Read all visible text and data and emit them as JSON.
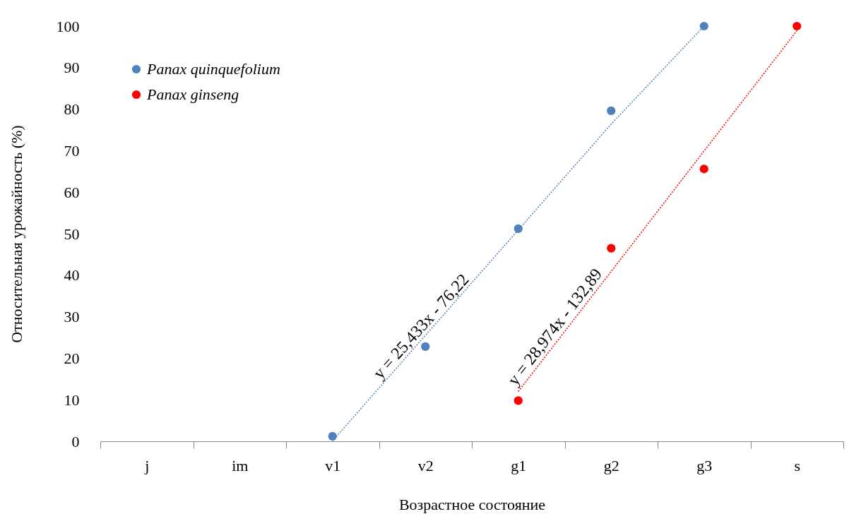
{
  "chart_data": {
    "type": "scatter",
    "xlabel": "Возрастное состояние",
    "ylabel": "Относительная урожайность (%)",
    "categories": [
      "j",
      "im",
      "v1",
      "v2",
      "g1",
      "g2",
      "g3",
      "s"
    ],
    "ylim": [
      0,
      100
    ],
    "yticks": [
      0,
      10,
      20,
      30,
      40,
      50,
      60,
      70,
      80,
      90,
      100
    ],
    "marker": "circle",
    "legend": "top left",
    "series": [
      {
        "name": "Panax quinquefolium",
        "color": "#4f81bd",
        "values": [
          null,
          null,
          1.2,
          22.8,
          51.2,
          79.6,
          100,
          null
        ]
      },
      {
        "name": "Panax ginseng",
        "color": "#ff0000",
        "values": [
          null,
          null,
          null,
          null,
          9.8,
          46.5,
          65.6,
          100
        ]
      },
      {
        "type": "line",
        "color": "#4f81bd",
        "line_style": "dotted",
        "marker": "none",
        "values": [
          null,
          null,
          0.1,
          25.5,
          50.9,
          76.4,
          100,
          null
        ]
      },
      {
        "type": "line",
        "color": "#ff0000",
        "line_style": "dotted",
        "marker": "none",
        "values": [
          null,
          null,
          null,
          null,
          12,
          40.9,
          69.9,
          98.9
        ]
      }
    ],
    "annotations": [
      "y = 25,433x - 76,22",
      "y = 28,974x - 132,89"
    ]
  }
}
